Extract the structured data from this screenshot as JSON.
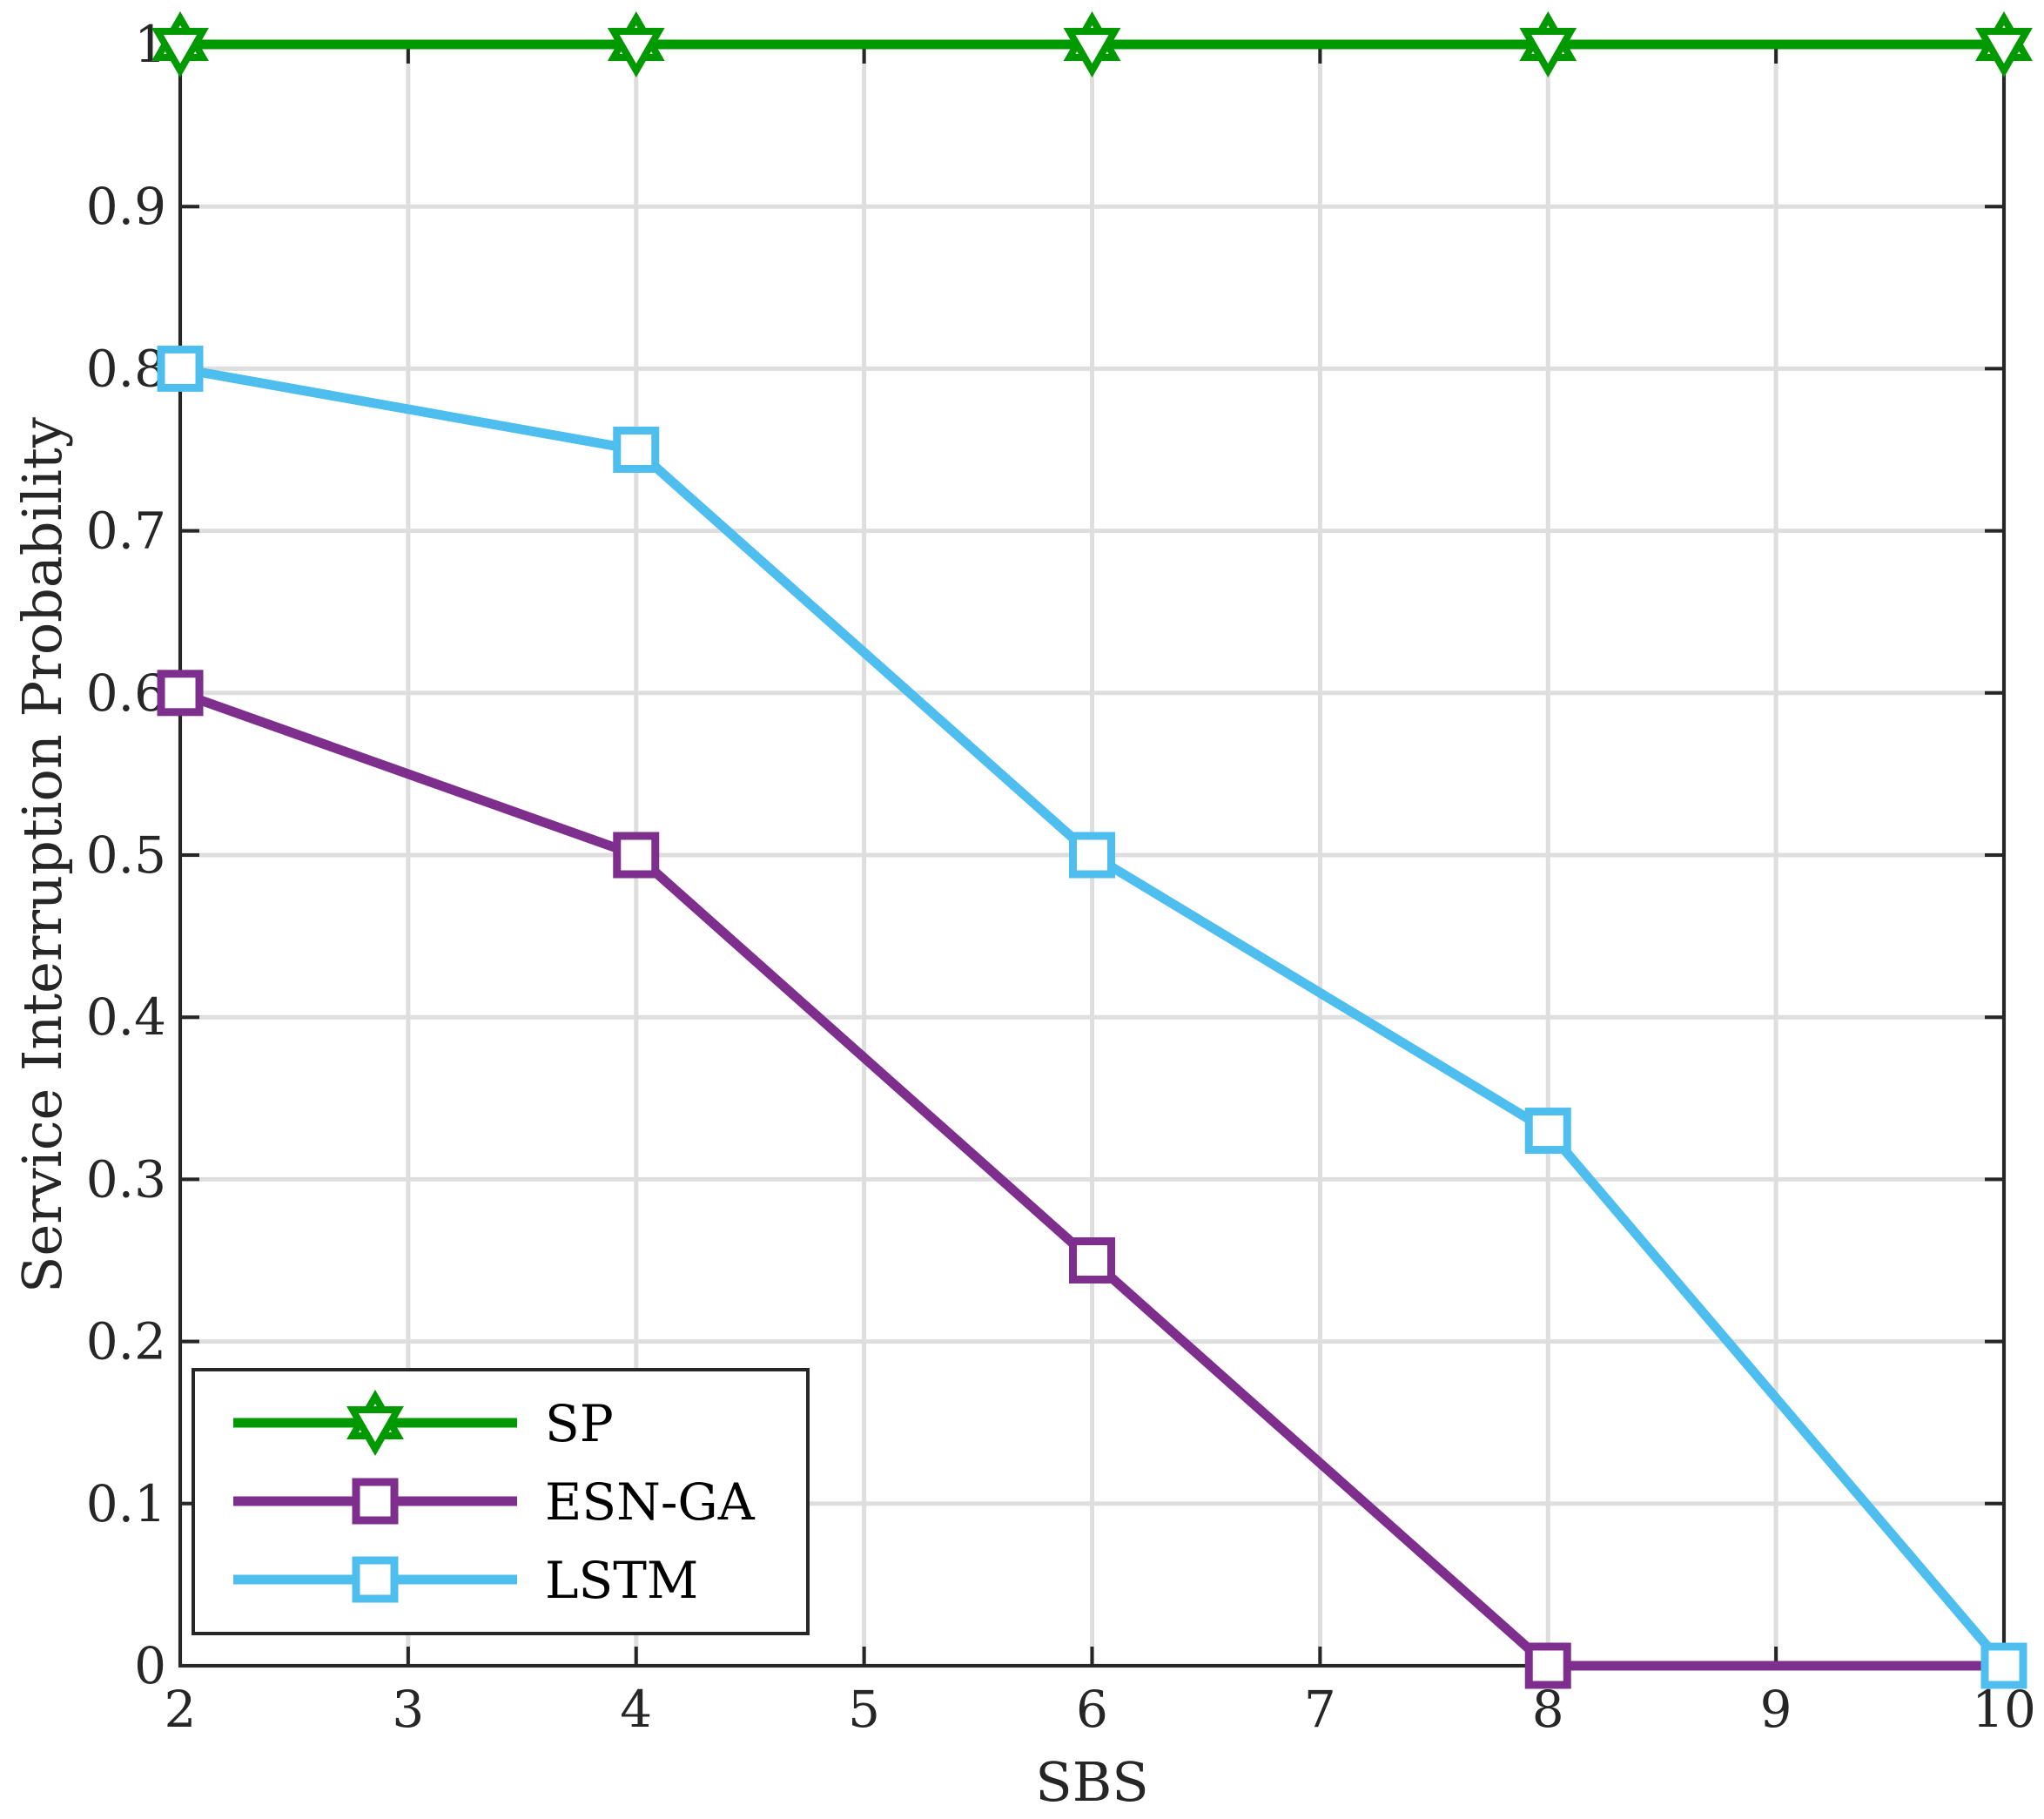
{
  "chart_data": {
    "type": "line",
    "xlabel": "SBS",
    "ylabel": "Service Interruption Probability",
    "xlim": [
      2,
      10
    ],
    "ylim": [
      0,
      1
    ],
    "xticks": [
      2,
      3,
      4,
      5,
      6,
      7,
      8,
      9,
      10
    ],
    "yticks": [
      0,
      0.1,
      0.2,
      0.3,
      0.4,
      0.5,
      0.6,
      0.7,
      0.8,
      0.9,
      1
    ],
    "xtick_labels": [
      "2",
      "3",
      "4",
      "5",
      "6",
      "7",
      "8",
      "9",
      "10"
    ],
    "ytick_labels": [
      "0",
      "0.1",
      "0.2",
      "0.3",
      "0.4",
      "0.5",
      "0.6",
      "0.7",
      "0.8",
      "0.9",
      "1"
    ],
    "grid": true,
    "legend_position": "bottom-left",
    "series": [
      {
        "name": "SP",
        "color": "#009900",
        "marker": "hexagram",
        "x": [
          2,
          4,
          6,
          8,
          10
        ],
        "values": [
          1,
          1,
          1,
          1,
          1
        ]
      },
      {
        "name": "ESN-GA",
        "color": "#7E2F8E",
        "marker": "square",
        "x": [
          2,
          4,
          6,
          8,
          10
        ],
        "values": [
          0.6,
          0.5,
          0.25,
          0,
          0
        ]
      },
      {
        "name": "LSTM",
        "color": "#4DBEEE",
        "marker": "square",
        "x": [
          2,
          4,
          6,
          8,
          10
        ],
        "values": [
          0.8,
          0.75,
          0.5,
          0.33,
          0
        ]
      }
    ]
  }
}
